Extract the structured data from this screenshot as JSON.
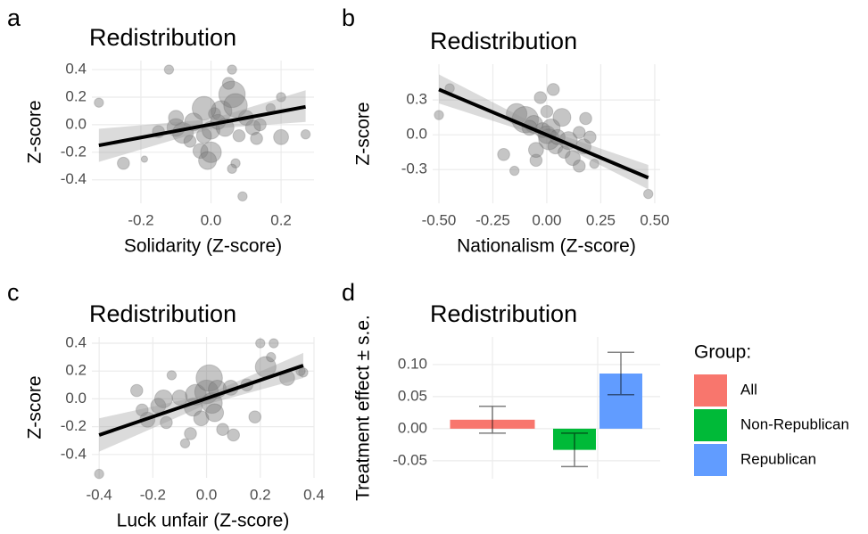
{
  "chart_data": [
    {
      "type": "scatter",
      "panel": "a",
      "title": "Redistribution",
      "x_label": "Solidarity (Z-score)",
      "y_label": "Z-score",
      "grid": true,
      "xlim": [
        -0.34,
        0.294
      ],
      "ylim": [
        -0.57,
        0.465
      ],
      "xticks": [
        -0.2,
        {
          "value": 0,
          "label": "0.0"
        },
        0.2
      ],
      "yticks": [
        -0.4,
        -0.2,
        {
          "value": 0,
          "label": "0.0"
        },
        0.2,
        0.4
      ],
      "series": [
        {
          "color": "#7f7f7f",
          "x": [
            -0.32,
            -0.25,
            -0.19,
            -0.12,
            -0.15,
            -0.1,
            -0.1,
            -0.08,
            -0.06,
            -0.05,
            -0.03,
            -0.02,
            0.0,
            0.0,
            0.01,
            -0.01,
            0.02,
            0.03,
            0.04,
            0.05,
            0.06,
            0.07,
            0.06,
            0.08,
            0.07,
            0.09,
            0.1,
            0.12,
            0.13,
            0.14,
            0.17,
            0.2,
            0.2,
            0.27,
            0.06,
            -0.02
          ],
          "values": [
            0.16,
            -0.28,
            -0.25,
            0.4,
            -0.05,
            -0.02,
            0.05,
            -0.06,
            -0.12,
            0.02,
            -0.19,
            -0.08,
            -0.04,
            -0.2,
            0.08,
            -0.26,
            0.02,
            0.1,
            -0.02,
            0.3,
            0.22,
            0.14,
            0.4,
            -0.08,
            -0.28,
            -0.52,
            0.05,
            -0.02,
            -0.1,
            0.0,
            0.12,
            0.2,
            -0.09,
            -0.07,
            -0.32,
            0.12
          ],
          "sizes": [
            2,
            3,
            1,
            2,
            3,
            5,
            4,
            6,
            3,
            5,
            4,
            4,
            5,
            6,
            3,
            5,
            4,
            6,
            5,
            3,
            8,
            7,
            2,
            3,
            2,
            2,
            4,
            4,
            3,
            3,
            2,
            2,
            4,
            2,
            2,
            7
          ]
        }
      ],
      "fit": {
        "x": [
          -0.32,
          0.27
        ],
        "y": [
          -0.15,
          0.13
        ]
      },
      "band": {
        "x": [
          -0.32,
          0,
          0.27
        ],
        "lower": [
          -0.27,
          -0.03,
          0.02
        ],
        "upper": [
          -0.03,
          0.04,
          0.25
        ]
      }
    },
    {
      "type": "scatter",
      "panel": "b",
      "title": "Redistribution",
      "x_label": "Nationalism (Z-score)",
      "y_label": "Z-score",
      "grid": true,
      "xlim": [
        -0.529,
        0.525
      ],
      "ylim": [
        -0.59,
        0.608
      ],
      "xticks": [
        {
          "value": -0.5,
          "label": "-0.50"
        },
        -0.25,
        {
          "value": 0,
          "label": "0.00"
        },
        0.25,
        {
          "value": 0.5,
          "label": "0.50"
        }
      ],
      "yticks": [
        -0.3,
        {
          "value": 0,
          "label": "0.0"
        },
        0.3
      ],
      "series": [
        {
          "color": "#7f7f7f",
          "x": [
            -0.5,
            -0.45,
            -0.2,
            -0.15,
            -0.14,
            -0.1,
            -0.06,
            -0.03,
            -0.02,
            0.0,
            0.01,
            0.02,
            0.03,
            0.04,
            0.05,
            0.07,
            0.08,
            0.1,
            0.12,
            0.15,
            0.17,
            0.18,
            -0.05,
            0.2,
            -0.08,
            0.22,
            0.47,
            -0.05,
            0.15,
            0.0
          ],
          "values": [
            0.17,
            0.4,
            -0.17,
            -0.31,
            0.18,
            0.13,
            0.09,
            0.32,
            0.04,
            0.0,
            -0.04,
            0.06,
            0.39,
            -0.1,
            -0.02,
            0.15,
            -0.15,
            -0.05,
            -0.2,
            0.02,
            -0.1,
            0.14,
            -0.22,
            -0.02,
            0.06,
            -0.25,
            -0.51,
            -0.13,
            -0.27,
            0.2
          ],
          "sizes": [
            2,
            2,
            3,
            2,
            6,
            8,
            5,
            3,
            4,
            5,
            6,
            5,
            3,
            4,
            4,
            5,
            3,
            5,
            4,
            3,
            4,
            3,
            3,
            3,
            4,
            2,
            2,
            4,
            3,
            3
          ]
        }
      ],
      "fit": {
        "x": [
          -0.5,
          0.47
        ],
        "y": [
          0.39,
          -0.37
        ]
      },
      "band": {
        "x": [
          -0.5,
          0,
          0.47
        ],
        "lower": [
          0.27,
          -0.03,
          -0.47
        ],
        "upper": [
          0.52,
          0.04,
          -0.26
        ]
      }
    },
    {
      "type": "scatter",
      "panel": "c",
      "title": "Redistribution",
      "x_label": "Luck unfair (Z-score)",
      "y_label": "Z-score",
      "grid": true,
      "xlim": [
        -0.427,
        0.4
      ],
      "ylim": [
        -0.568,
        0.445
      ],
      "xticks": [
        -0.4,
        -0.2,
        {
          "value": 0,
          "label": "0.0"
        },
        0.2,
        0.4
      ],
      "yticks": [
        -0.4,
        -0.2,
        {
          "value": 0,
          "label": "0.0"
        },
        0.2,
        0.4
      ],
      "series": [
        {
          "color": "#7f7f7f",
          "x": [
            -0.4,
            -0.26,
            -0.24,
            -0.22,
            -0.18,
            -0.16,
            -0.15,
            -0.13,
            -0.1,
            -0.08,
            -0.06,
            -0.05,
            -0.04,
            -0.02,
            0.0,
            0.01,
            0.02,
            0.03,
            0.04,
            0.06,
            0.09,
            0.1,
            0.15,
            0.18,
            0.2,
            0.22,
            0.25,
            0.24,
            0.3,
            0.36,
            0.35
          ],
          "values": [
            -0.54,
            0.06,
            -0.08,
            -0.15,
            -0.05,
            0.0,
            -0.17,
            0.17,
            0.01,
            -0.32,
            -0.25,
            -0.06,
            0.03,
            -0.14,
            0.05,
            0.15,
            -0.03,
            -0.1,
            0.07,
            -0.22,
            0.08,
            -0.26,
            0.1,
            -0.13,
            0.4,
            0.23,
            0.4,
            0.3,
            0.15,
            0.19,
            0.2
          ],
          "sizes": [
            2,
            3,
            3,
            4,
            4,
            5,
            3,
            2,
            4,
            2,
            3,
            5,
            6,
            4,
            7,
            8,
            6,
            5,
            5,
            3,
            4,
            3,
            3,
            3,
            2,
            6,
            2,
            2,
            4,
            2,
            2
          ]
        }
      ],
      "fit": {
        "x": [
          -0.4,
          0.36
        ],
        "y": [
          -0.26,
          0.24
        ]
      },
      "band": {
        "x": [
          -0.4,
          0,
          0.36
        ],
        "lower": [
          -0.38,
          -0.04,
          0.15
        ],
        "upper": [
          -0.14,
          0.03,
          0.33
        ]
      }
    },
    {
      "type": "bar",
      "panel": "d",
      "title": "Redistribution",
      "y_label": "Treatment effect ± s.e.",
      "legend_title": "Group:",
      "grid": true,
      "ylim": [
        -0.078,
        0.143
      ],
      "yticks": [
        -0.05,
        {
          "value": 0,
          "label": "0.00"
        },
        0.05,
        {
          "value": 0.1,
          "label": "0.10"
        }
      ],
      "series": [
        {
          "name": "All",
          "color": "#f8766d",
          "values": [
            0.014
          ],
          "errors": [
            0.021
          ]
        },
        {
          "name": "Non-Republican",
          "color": "#00ba38",
          "values": [
            -0.033
          ],
          "errors": [
            0.026
          ]
        },
        {
          "name": "Republican",
          "color": "#619cff",
          "values": [
            0.086
          ],
          "errors": [
            0.033
          ]
        }
      ]
    }
  ]
}
